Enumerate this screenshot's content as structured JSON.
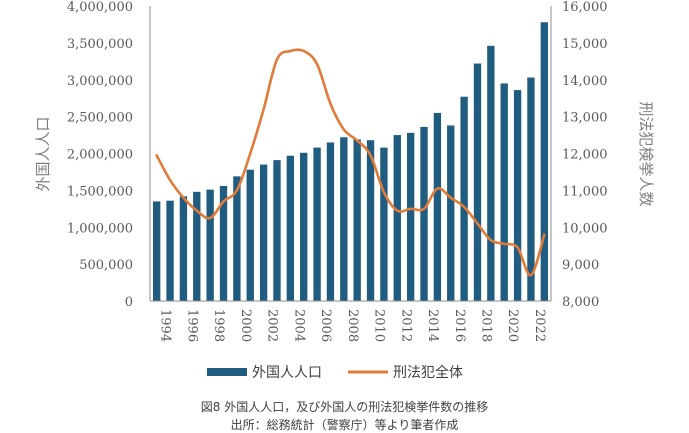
{
  "colors": {
    "bar": "#1f5c7f",
    "line": "#e07b39",
    "axis": "#8c8c8c",
    "text": "#595959"
  },
  "caption": {
    "title": "図8 外国人人口，及び外国人の刑法犯検挙件数の推移",
    "source": "出所：総務統計（警察庁）等より筆者作成"
  },
  "chart_data": {
    "type": "bar+line",
    "categories": [
      "1994",
      "1995",
      "1996",
      "1997",
      "1998",
      "1999",
      "2000",
      "2001",
      "2002",
      "2003",
      "2004",
      "2005",
      "2006",
      "2007",
      "2008",
      "2009",
      "2010",
      "2011",
      "2012",
      "2013",
      "2014",
      "2015",
      "2016",
      "2017",
      "2018",
      "2019",
      "2020",
      "2021",
      "2022",
      "2023"
    ],
    "x_tick_labels": [
      "1994",
      "1996",
      "1998",
      "2000",
      "2002",
      "2004",
      "2006",
      "2008",
      "2010",
      "2012",
      "2014",
      "2016",
      "2018",
      "2020",
      "2022"
    ],
    "series": [
      {
        "name": "外国人人口",
        "type": "bar",
        "axis": "left",
        "values": [
          1350000,
          1360000,
          1420000,
          1480000,
          1510000,
          1560000,
          1690000,
          1780000,
          1850000,
          1910000,
          1970000,
          2010000,
          2080000,
          2150000,
          2220000,
          2190000,
          2180000,
          2080000,
          2250000,
          2280000,
          2360000,
          2550000,
          2380000,
          2770000,
          3220000,
          3460000,
          2950000,
          2860000,
          3030000,
          3780000
        ]
      },
      {
        "name": "刑法犯全体",
        "type": "line",
        "axis": "right",
        "values": [
          11950,
          11280,
          10800,
          10450,
          10250,
          10700,
          11000,
          12000,
          13200,
          14550,
          14780,
          14780,
          14420,
          13350,
          12650,
          12350,
          11950,
          10950,
          10450,
          10500,
          10500,
          11050,
          10800,
          10550,
          10100,
          9650,
          9550,
          9450,
          8700,
          9800
        ]
      }
    ],
    "y_left": {
      "label": "外国人人口",
      "min": 0,
      "max": 4000000,
      "ticks": [
        "0",
        "500,000",
        "1,000,000",
        "1,500,000",
        "2,000,000",
        "2,500,000",
        "3,000,000",
        "3,500,000",
        "4,000,000"
      ]
    },
    "y_right": {
      "label": "刑法犯検挙人数",
      "min": 8000,
      "max": 16000,
      "ticks": [
        "8,000",
        "9,000",
        "10,000",
        "11,000",
        "12,000",
        "13,000",
        "14,000",
        "15,000",
        "16,000"
      ]
    },
    "legend_position": "bottom"
  }
}
